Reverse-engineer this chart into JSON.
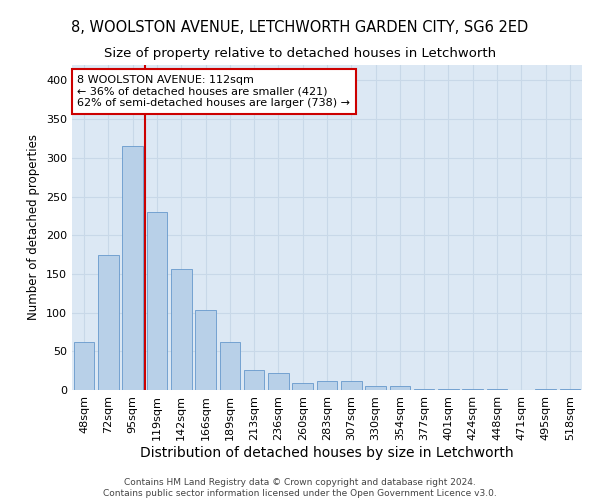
{
  "title": "8, WOOLSTON AVENUE, LETCHWORTH GARDEN CITY, SG6 2ED",
  "subtitle": "Size of property relative to detached houses in Letchworth",
  "xlabel": "Distribution of detached houses by size in Letchworth",
  "ylabel": "Number of detached properties",
  "categories": [
    "48sqm",
    "72sqm",
    "95sqm",
    "119sqm",
    "142sqm",
    "166sqm",
    "189sqm",
    "213sqm",
    "236sqm",
    "260sqm",
    "283sqm",
    "307sqm",
    "330sqm",
    "354sqm",
    "377sqm",
    "401sqm",
    "424sqm",
    "448sqm",
    "471sqm",
    "495sqm",
    "518sqm"
  ],
  "values": [
    62,
    175,
    315,
    230,
    157,
    103,
    62,
    26,
    22,
    9,
    12,
    12,
    5,
    5,
    1,
    1,
    1,
    1,
    0,
    1,
    1
  ],
  "bar_color": "#b8d0e8",
  "bar_edge_color": "#6699cc",
  "red_line_x": 3.0,
  "annotation_title": "8 WOOLSTON AVENUE: 112sqm",
  "annotation_line1": "← 36% of detached houses are smaller (421)",
  "annotation_line2": "62% of semi-detached houses are larger (738) →",
  "annotation_box_color": "#ffffff",
  "annotation_border_color": "#cc0000",
  "red_line_color": "#cc0000",
  "ylim": [
    0,
    420
  ],
  "yticks": [
    0,
    50,
    100,
    150,
    200,
    250,
    300,
    350,
    400
  ],
  "grid_color": "#c8d8e8",
  "background_color": "#dce8f4",
  "footer_line1": "Contains HM Land Registry data © Crown copyright and database right 2024.",
  "footer_line2": "Contains public sector information licensed under the Open Government Licence v3.0.",
  "title_fontsize": 10.5,
  "subtitle_fontsize": 9.5,
  "xlabel_fontsize": 10,
  "ylabel_fontsize": 8.5,
  "tick_fontsize": 8,
  "annotation_fontsize": 8,
  "footer_fontsize": 6.5
}
